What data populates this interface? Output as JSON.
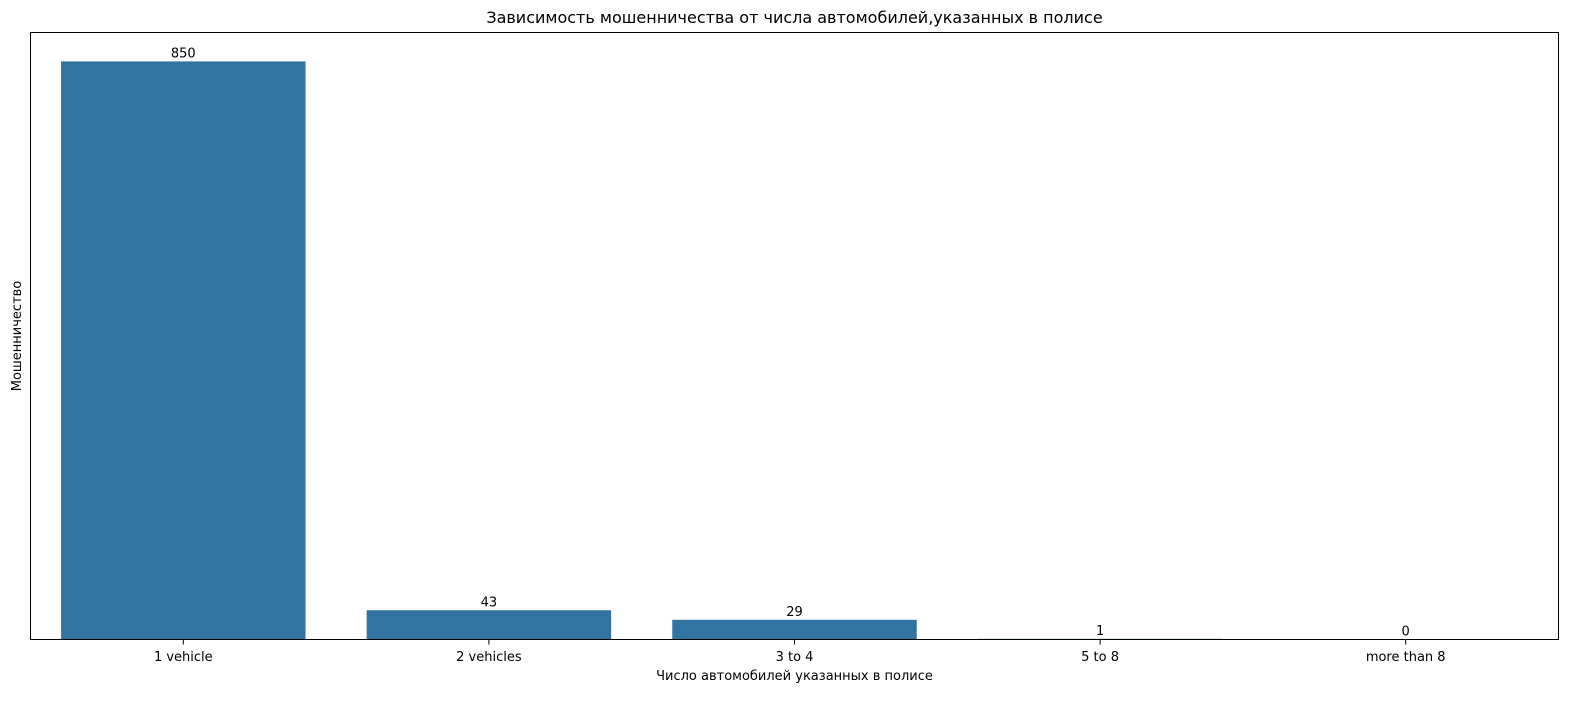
{
  "chart_data": {
    "type": "bar",
    "title": "Зависимость мошенничества от числа автомобилей,указанных в полисе",
    "xlabel": "Число автомобилей указанных в полисе",
    "ylabel": "Мошенничество",
    "categories": [
      "1 vehicle",
      "2 vehicles",
      "3 to 4",
      "5 to 8",
      "more than 8"
    ],
    "values": [
      850,
      43,
      29,
      1,
      0
    ],
    "data_labels": [
      "850",
      "43",
      "29",
      "1",
      "0"
    ],
    "ylim": [
      0,
      892.5
    ],
    "y_ticks_visible": false,
    "grid": false,
    "legend": "none",
    "bar_color": "#3274a1"
  }
}
